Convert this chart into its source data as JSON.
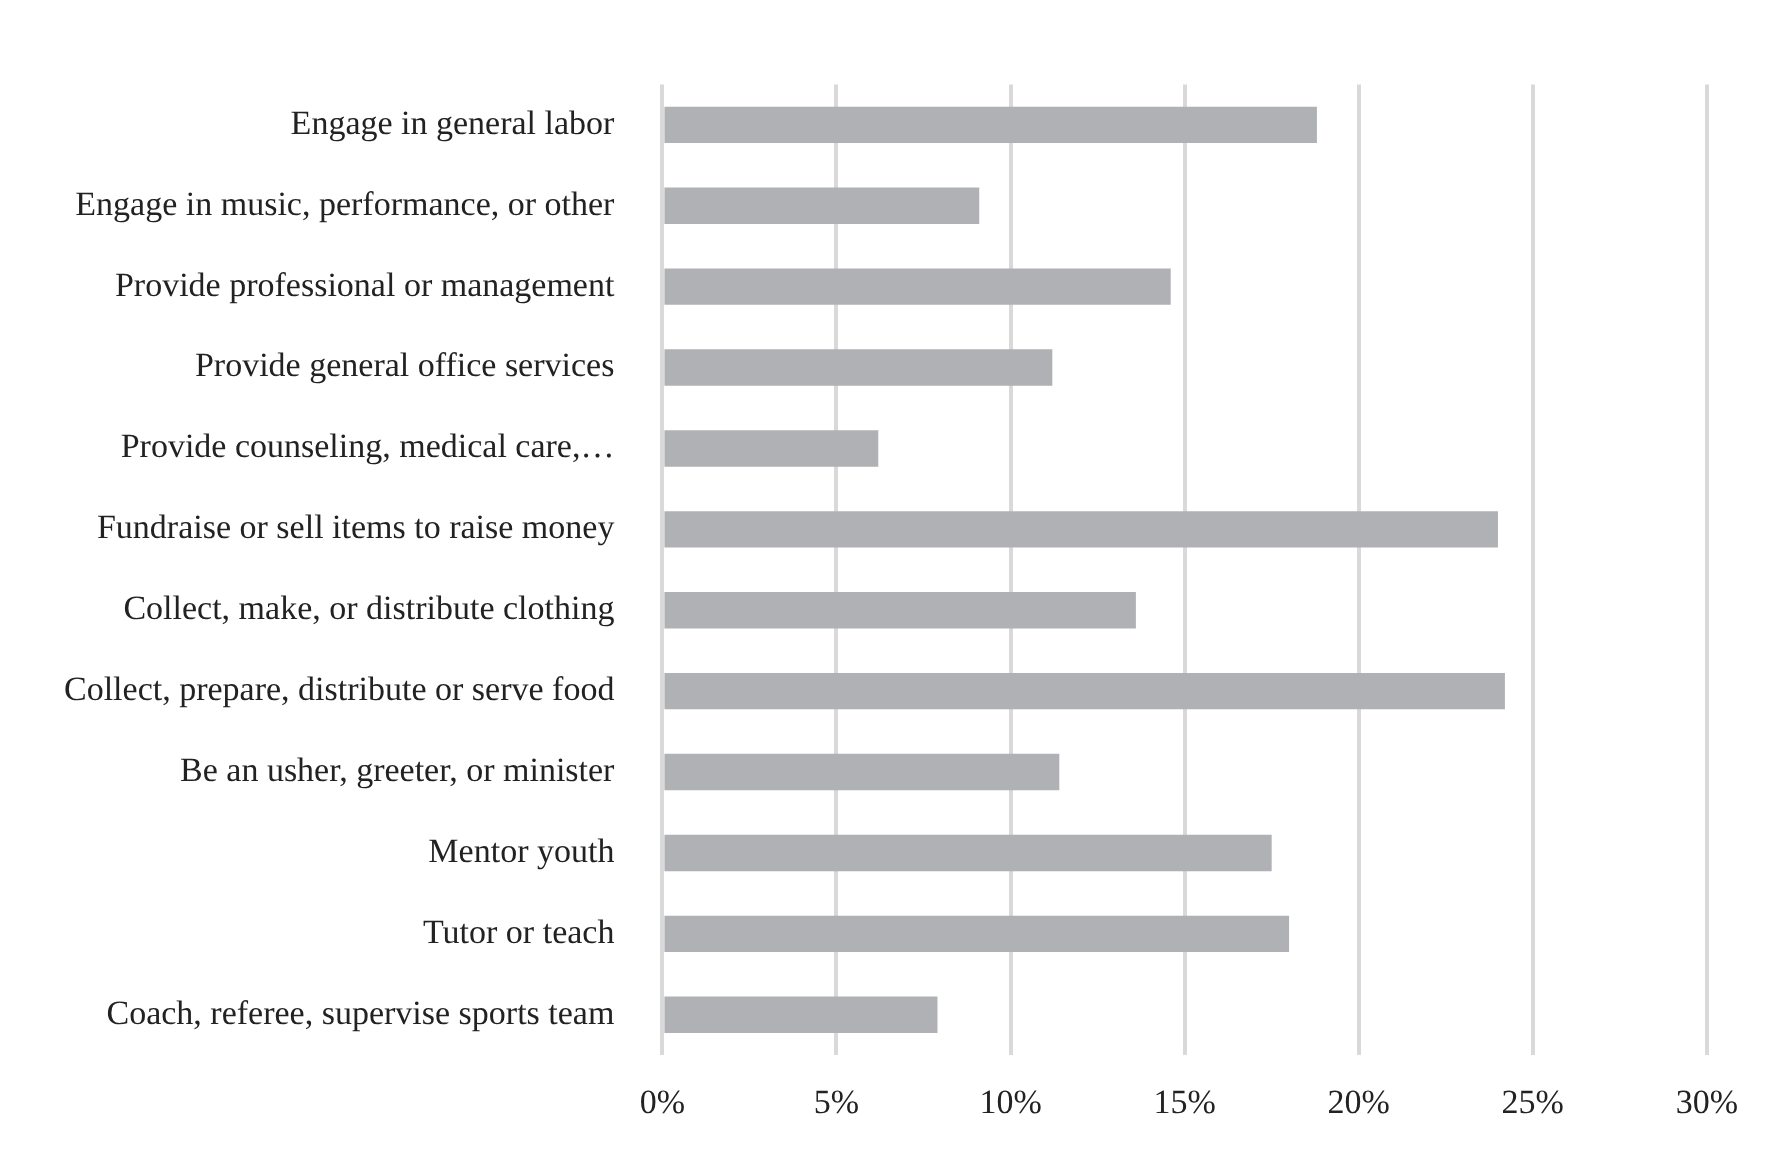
{
  "chart_data": {
    "type": "bar",
    "orientation": "horizontal",
    "categories": [
      "Engage in general labor",
      "Engage in music, performance, or other",
      "Provide professional or management",
      "Provide general office services",
      "Provide counseling, medical care,…",
      "Fundraise or sell items to raise money",
      "Collect, make, or distribute clothing",
      "Collect, prepare, distribute or serve food",
      "Be an usher, greeter, or minister",
      "Mentor youth",
      "Tutor or teach",
      "Coach, referee, supervise sports team"
    ],
    "values": [
      18.8,
      9.1,
      14.6,
      11.2,
      6.2,
      24.0,
      13.6,
      24.2,
      11.4,
      17.5,
      18.0,
      7.9
    ],
    "color": "#b0b1b5",
    "xlim": [
      0,
      30
    ],
    "xticks": [
      {
        "value": 0,
        "label": "0%"
      },
      {
        "value": 5,
        "label": "5%"
      },
      {
        "value": 10,
        "label": "10%"
      },
      {
        "value": 15,
        "label": "15%"
      },
      {
        "value": 20,
        "label": "20%"
      },
      {
        "value": 25,
        "label": "25%"
      },
      {
        "value": 30,
        "label": "30%"
      }
    ],
    "grid": "x",
    "legend": false
  }
}
